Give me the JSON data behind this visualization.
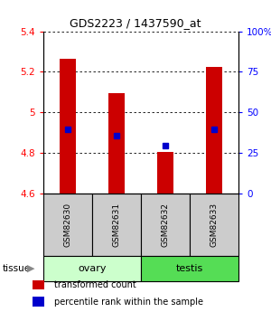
{
  "title": "GDS2223 / 1437590_at",
  "samples": [
    "GSM82630",
    "GSM82631",
    "GSM82632",
    "GSM82633"
  ],
  "bar_bottoms": [
    4.6,
    4.6,
    4.6,
    4.6
  ],
  "bar_tops": [
    5.265,
    5.095,
    4.805,
    5.225
  ],
  "blue_y": [
    4.915,
    4.885,
    4.835,
    4.915
  ],
  "ylim": [
    4.6,
    5.4
  ],
  "yticks_left": [
    4.6,
    4.8,
    5.0,
    5.2,
    5.4
  ],
  "yticks_right": [
    0,
    25,
    50,
    75,
    100
  ],
  "yticks_right_labels": [
    "0",
    "25",
    "50",
    "75",
    "100%"
  ],
  "bar_color": "#cc0000",
  "blue_color": "#0000cc",
  "sample_box_color": "#cccccc",
  "tissue_groups": [
    {
      "label": "ovary",
      "indices": [
        0,
        1
      ],
      "color": "#ccffcc"
    },
    {
      "label": "testis",
      "indices": [
        2,
        3
      ],
      "color": "#55dd55"
    }
  ],
  "legend_red": "transformed count",
  "legend_blue": "percentile rank within the sample",
  "tissue_label": "tissue",
  "bar_width": 0.35
}
